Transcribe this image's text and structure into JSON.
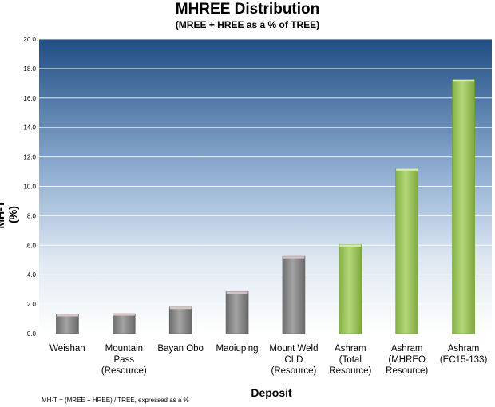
{
  "chart_data": {
    "type": "bar",
    "title": "MHREE Distribution",
    "subtitle": "(MREE + HREE as a % of TREE)",
    "xlabel": "Deposit",
    "ylabel": "MH-T (%)",
    "ylim": [
      0,
      20
    ],
    "yticks": [
      "0.0",
      "2.0",
      "4.0",
      "6.0",
      "8.0",
      "10.0",
      "12.0",
      "14.0",
      "16.0",
      "18.0",
      "20.0"
    ],
    "grid": true,
    "categories": [
      [
        "Weishan"
      ],
      [
        "Mountain",
        "Pass",
        "(Resource)"
      ],
      [
        "Bayan Obo"
      ],
      [
        "Maoiuping"
      ],
      [
        "Mount Weld",
        "CLD",
        "(Resource)"
      ],
      [
        "Ashram",
        "(Total",
        "Resource)"
      ],
      [
        "Ashram",
        "(MHREO",
        "Resource)"
      ],
      [
        "Ashram",
        "(EC15-133)"
      ]
    ],
    "values": [
      1.3,
      1.35,
      1.8,
      2.85,
      5.25,
      6.05,
      11.2,
      17.25
    ],
    "bar_colors": [
      "#8c8c8c",
      "#8c8c8c",
      "#8c8c8c",
      "#8c8c8c",
      "#8c8c8c",
      "#9bc45a",
      "#9bc45a",
      "#9bc45a"
    ],
    "footnote": "MH-T = (MREE + HREE) / TREE, expressed as a %"
  }
}
